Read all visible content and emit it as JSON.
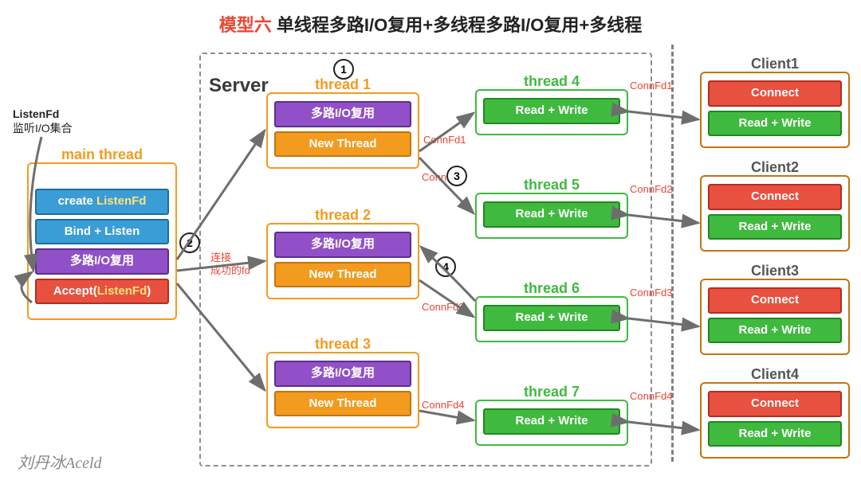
{
  "title": {
    "prefix": "模型六",
    "rest": " 单线程多路I/O复用+多线程多路I/O复用+多线程"
  },
  "serverLabel": "Server",
  "signature": "刘丹冰Aceld",
  "listenNote": {
    "line1": "ListenFd",
    "line2": "监听I/O集合"
  },
  "connNote": {
    "line1": "连接",
    "line2": "成功的fd"
  },
  "circles": [
    "1",
    "2",
    "3",
    "4"
  ],
  "main": {
    "title": "main thread",
    "bars": [
      {
        "cls": "blue",
        "html": "create <b style='color:#ffe37a'>ListenFd</b>"
      },
      {
        "cls": "blue",
        "txt": "Bind + Listen"
      },
      {
        "cls": "purple",
        "txt": "多路I/O复用"
      },
      {
        "cls": "red",
        "html": "Accept(<span style='color:#ffe37a'>ListenFd</span>)"
      }
    ]
  },
  "subThreads": [
    {
      "title": "thread 1"
    },
    {
      "title": "thread 2"
    },
    {
      "title": "thread 3"
    }
  ],
  "subBar1": "多路I/O复用",
  "subBar2": "New Thread",
  "workers": [
    {
      "title": "thread 4",
      "conn": "ConnFd1"
    },
    {
      "title": "thread 5",
      "conn": "ConnFd2"
    },
    {
      "title": "thread 6",
      "conn": "ConnFd3"
    },
    {
      "title": "thread 7",
      "conn": "ConnFd4"
    }
  ],
  "workerBar": "Read + Write",
  "connSrc": [
    "ConnFd1",
    "ConnFd2",
    "ConnFd3",
    "ConnFd4"
  ],
  "clients": [
    {
      "title": "Client1"
    },
    {
      "title": "Client2"
    },
    {
      "title": "Client3"
    },
    {
      "title": "Client4"
    }
  ],
  "clientBar1": "Connect",
  "clientBar2": "Read + Write",
  "colors": {
    "titleRed": "#e8513f",
    "mainBorder": "#f39b1f",
    "subBorder": "#f39b1f",
    "workerBorder": "#3fba3f",
    "clientBorder": "#c37410",
    "arrow": "#6e6e6e"
  }
}
